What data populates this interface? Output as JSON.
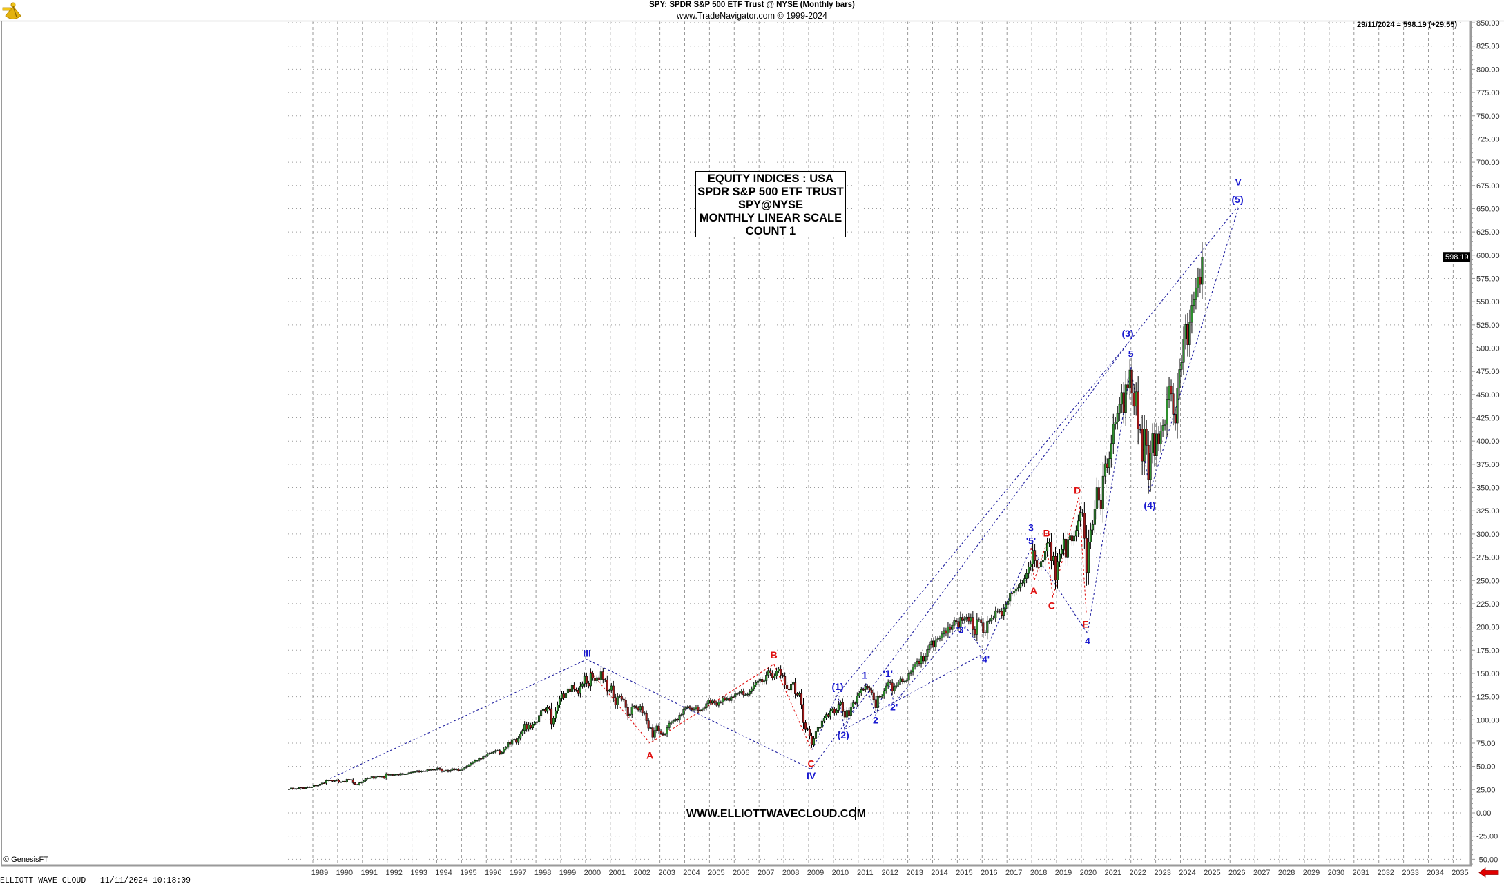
{
  "header": {
    "title": "SPY:  SPDR S&P 500 ETF Trust @ NYSE  (Monthly bars)",
    "subtitle": "www.TradeNavigator.com © 1999-2024",
    "logo_icon": "sextant-icon"
  },
  "readout": "29/11/2024 = 598.19 (+29.55)",
  "last_price_tag": "598.19",
  "info_box": [
    "EQUITY INDICES : USA",
    "SPDR S&P 500 ETF TRUST",
    "SPY@NYSE",
    "MONTHLY LINEAR SCALE",
    "COUNT 1"
  ],
  "website_box": "WWW.ELLIOTTWAVECLOUD.COM",
  "copyright": "© GenesisFT",
  "footer": "ELLIOTT WAVE CLOUD   11/11/2024 10:18:09",
  "nav_arrow_icon": "red-left-arrow-icon",
  "colors": {
    "up": "#2f8f2f",
    "down": "#a31a1a",
    "wave_blue": "#1a1ad0",
    "wave_red": "#e01010",
    "grid": "#9a9a9a",
    "axis": "#9a9a9a"
  },
  "chart_data": {
    "type": "bar",
    "bar_style": "monthly candlesticks",
    "scale": "linear",
    "grid": true,
    "start_month": "1988-01",
    "closes": [
      25.7,
      26.8,
      25.9,
      26.1,
      26.2,
      27.4,
      27.2,
      26.2,
      27.2,
      27.9,
      27.4,
      27.8,
      29.7,
      28.9,
      29.5,
      31.0,
      32.1,
      31.8,
      34.6,
      35.1,
      34.9,
      34.0,
      34.6,
      35.3,
      32.9,
      33.2,
      34.0,
      33.1,
      36.1,
      35.8,
      35.6,
      32.3,
      30.6,
      30.4,
      32.2,
      33.0,
      34.4,
      36.7,
      37.5,
      37.5,
      39.0,
      37.1,
      38.8,
      39.5,
      38.8,
      39.2,
      37.5,
      41.7,
      40.9,
      41.3,
      40.4,
      41.5,
      41.5,
      40.8,
      42.4,
      41.4,
      41.8,
      41.9,
      43.1,
      43.6,
      43.9,
      44.3,
      45.2,
      44.0,
      45.0,
      45.1,
      44.8,
      46.4,
      45.9,
      46.8,
      46.2,
      46.6,
      48.2,
      46.7,
      44.6,
      45.1,
      45.7,
      44.4,
      45.8,
      47.5,
      46.3,
      47.2,
      45.4,
      45.9,
      47.0,
      48.7,
      50.1,
      51.5,
      53.3,
      54.5,
      56.2,
      56.2,
      58.4,
      58.2,
      60.5,
      61.6,
      63.6,
      64.1,
      64.6,
      65.4,
      66.9,
      67.1,
      64.0,
      65.2,
      68.7,
      70.5,
      75.7,
      74.1,
      78.6,
      79.1,
      75.7,
      80.1,
      84.8,
      88.5,
      95.4,
      89.9,
      94.7,
      91.5,
      95.5,
      97.0,
      98.0,
      104.9,
      110.2,
      111.2,
      109.1,
      113.4,
      112.1,
      95.7,
      101.7,
      109.8,
      116.4,
      122.9,
      128.0,
      123.8,
      128.6,
      133.5,
      130.2,
      137.3,
      132.9,
      132.0,
      128.3,
      136.3,
      138.9,
      146.9,
      139.4,
      136.6,
      149.9,
      145.2,
      142.1,
      145.5,
      143.1,
      151.8,
      143.6,
      142.9,
      131.5,
      132.0,
      136.6,
      124.0,
      116.0,
      124.9,
      125.6,
      122.4,
      121.1,
      113.4,
      104.1,
      106.0,
      113.9,
      114.8,
      113.0,
      110.7,
      114.7,
      107.7,
      106.7,
      99.0,
      91.2,
      91.6,
      81.5,
      88.6,
      93.6,
      88.0,
      85.6,
      84.1,
      84.8,
      91.7,
      96.4,
      97.5,
      99.0,
      100.8,
      99.6,
      105.1,
      105.8,
      111.2,
      113.1,
      114.5,
      112.6,
      110.7,
      112.1,
      114.1,
      110.2,
      110.4,
      111.5,
      113.0,
      117.4,
      121.2,
      118.1,
      120.4,
      118.1,
      115.7,
      119.2,
      119.1,
      123.4,
      122.0,
      122.9,
      120.7,
      124.9,
      124.8,
      128.0,
      128.1,
      129.5,
      131.1,
      127.0,
      127.0,
      127.7,
      130.4,
      133.6,
      137.8,
      140.1,
      141.8,
      143.8,
      140.7,
      142.1,
      148.2,
      153.1,
      150.3,
      145.5,
      147.4,
      152.7,
      154.9,
      148.1,
      146.8,
      137.9,
      133.1,
      132.3,
      138.6,
      140.0,
      128.0,
      126.7,
      128.3,
      116.6,
      96.9,
      89.6,
      90.3,
      82.6,
      73.5,
      79.8,
      87.3,
      91.9,
      91.9,
      98.7,
      102.1,
      105.7,
      103.6,
      109.6,
      111.5,
      107.4,
      110.4,
      116.9,
      118.7,
      108.9,
      103.1,
      110.2,
      104.9,
      114.1,
      118.3,
      118.1,
      125.8,
      128.6,
      132.7,
      132.6,
      136.4,
      134.5,
      132.1,
      129.2,
      121.9,
      113.1,
      125.3,
      124.7,
      125.8,
      131.2,
      136.6,
      140.8,
      139.8,
      131.0,
      136.2,
      137.9,
      140.7,
      144.1,
      141.2,
      141.6,
      142.6,
      149.8,
      151.5,
      156.9,
      159.8,
      163.1,
      160.6,
      168.6,
      163.3,
      168.2,
      175.7,
      180.6,
      184.8,
      178.3,
      185.9,
      187.2,
      188.4,
      192.4,
      196.0,
      193.1,
      200.3,
      197.2,
      201.8,
      206.8,
      205.9,
      199.5,
      210.5,
      206.8,
      208.6,
      210.7,
      206.3,
      210.4,
      197.2,
      192.0,
      207.9,
      208.0,
      204.4,
      194.0,
      193.2,
      206.0,
      206.5,
      209.7,
      209.9,
      217.4,
      217.1,
      216.8,
      212.6,
      219.9,
      223.9,
      227.9,
      236.4,
      236.3,
      238.4,
      241.2,
      242.3,
      247.0,
      247.2,
      251.9,
      257.5,
      264.8,
      267.4,
      282.4,
      271.4,
      264.1,
      264.8,
      270.5,
      271.8,
      281.6,
      290.2,
      291.4,
      271.2,
      276.0,
      250.7,
      270.4,
      278.4,
      283.4,
      294.6,
      275.2,
      294.2,
      298.0,
      292.6,
      297.7,
      303.8,
      314.1,
      323.1,
      322.6,
      295.4,
      258.5,
      291.2,
      304.4,
      310.0,
      327.1,
      350.0,
      336.3,
      327.0,
      362.2,
      375.6,
      371.4,
      381.1,
      397.3,
      418.1,
      420.4,
      429.8,
      439.5,
      452.3,
      430.8,
      460.5,
      456.7,
      476.6,
      451.6,
      437.4,
      453.0,
      413.2,
      413.2,
      378.5,
      413.0,
      395.5,
      358.6,
      387.2,
      408.0,
      384.0,
      407.7,
      397.0,
      410.9,
      416.9,
      418.0,
      445.0,
      458.9,
      450.8,
      428.8,
      419.4,
      456.8,
      477.0,
      484.6,
      509.6,
      525.4,
      503.6,
      527.8,
      546.0,
      552.2,
      564.8,
      576.2,
      568.64,
      598.19
    ],
    "y_ticks": [
      -50,
      -25,
      0,
      25,
      50,
      75,
      100,
      125,
      150,
      175,
      200,
      225,
      250,
      275,
      300,
      325,
      350,
      375,
      400,
      425,
      450,
      475,
      500,
      525,
      550,
      575,
      600,
      625,
      650,
      675,
      700,
      725,
      750,
      775,
      800,
      825,
      850
    ],
    "ylim": [
      -56,
      852
    ],
    "x_ticks": [
      "1989",
      "1990",
      "1991",
      "1992",
      "1993",
      "1994",
      "1995",
      "1996",
      "1997",
      "1998",
      "1999",
      "2000",
      "2001",
      "2002",
      "2003",
      "2004",
      "2005",
      "2006",
      "2007",
      "2008",
      "2009",
      "2010",
      "2011",
      "2012",
      "2013",
      "2014",
      "2015",
      "2016",
      "2017",
      "2018",
      "2019",
      "2020",
      "2021",
      "2022",
      "2023",
      "2024",
      "2025",
      "2026",
      "2027",
      "2028",
      "2029",
      "2030",
      "2031",
      "2032",
      "2033",
      "2034",
      "2035"
    ],
    "xlim": [
      "1988-01",
      "2036-01"
    ],
    "annotations": [
      {
        "text": "III",
        "date": 2000.06,
        "price": 172,
        "color": "blue"
      },
      {
        "text": "A",
        "date": 2002.6,
        "price": 62,
        "color": "red"
      },
      {
        "text": "B",
        "date": 2007.6,
        "price": 170,
        "color": "red"
      },
      {
        "text": "C",
        "date": 2009.1,
        "price": 53,
        "color": "red"
      },
      {
        "text": "IV",
        "date": 2009.1,
        "price": 40,
        "color": "blue"
      },
      {
        "text": "(1)",
        "date": 2010.17,
        "price": 136,
        "color": "blue"
      },
      {
        "text": "(2)",
        "date": 2010.4,
        "price": 84,
        "color": "blue"
      },
      {
        "text": "1",
        "date": 2011.26,
        "price": 148,
        "color": "blue"
      },
      {
        "text": "2",
        "date": 2011.7,
        "price": 100,
        "color": "blue"
      },
      {
        "text": "'1'",
        "date": 2012.2,
        "price": 150,
        "color": "blue"
      },
      {
        "text": "'2'",
        "date": 2012.4,
        "price": 114,
        "color": "blue"
      },
      {
        "text": "'3'",
        "date": 2015.15,
        "price": 197,
        "color": "blue"
      },
      {
        "text": "'4'",
        "date": 2016.1,
        "price": 165,
        "color": "blue"
      },
      {
        "text": "3",
        "date": 2017.97,
        "price": 307,
        "color": "blue"
      },
      {
        "text": "'5'",
        "date": 2017.97,
        "price": 293,
        "color": "blue"
      },
      {
        "text": "A",
        "date": 2018.08,
        "price": 239,
        "color": "red"
      },
      {
        "text": "B",
        "date": 2018.6,
        "price": 301,
        "color": "red"
      },
      {
        "text": "C",
        "date": 2018.8,
        "price": 223,
        "color": "red"
      },
      {
        "text": "D",
        "date": 2019.84,
        "price": 347,
        "color": "red"
      },
      {
        "text": "E",
        "date": 2020.17,
        "price": 203,
        "color": "red"
      },
      {
        "text": "4",
        "date": 2020.25,
        "price": 185,
        "color": "blue"
      },
      {
        "text": "(3)",
        "date": 2021.87,
        "price": 516,
        "color": "blue"
      },
      {
        "text": "5",
        "date": 2022.0,
        "price": 494,
        "color": "blue"
      },
      {
        "text": "(4)",
        "date": 2022.76,
        "price": 331,
        "color": "blue"
      },
      {
        "text": "V",
        "date": 2026.33,
        "price": 679,
        "color": "blue"
      },
      {
        "text": "(5)",
        "date": 2026.3,
        "price": 660,
        "color": "blue"
      }
    ],
    "wave_lines": [
      {
        "color": "blue",
        "points": [
          [
            1989.7,
            37
          ],
          [
            2000.05,
            165
          ],
          [
            2009.1,
            47
          ]
        ]
      },
      {
        "color": "blue",
        "points": [
          [
            2009.1,
            47
          ],
          [
            2021.87,
            505
          ]
        ]
      },
      {
        "color": "blue",
        "points": [
          [
            2010.17,
            128
          ],
          [
            2021.87,
            505
          ],
          [
            2026.3,
            652
          ]
        ]
      },
      {
        "color": "blue",
        "points": [
          [
            2009.15,
            68
          ],
          [
            2010.17,
            128
          ],
          [
            2010.45,
            90
          ],
          [
            2011.3,
            140
          ],
          [
            2011.7,
            105
          ],
          [
            2012.2,
            142
          ],
          [
            2012.45,
            118
          ],
          [
            2015.2,
            205
          ],
          [
            2016.1,
            172
          ],
          [
            2017.97,
            285
          ],
          [
            2020.25,
            193
          ],
          [
            2022.0,
            480
          ],
          [
            2022.76,
            345
          ],
          [
            2026.35,
            652
          ]
        ]
      },
      {
        "color": "blue",
        "points": [
          [
            2010.45,
            90
          ],
          [
            2016.1,
            172
          ]
        ]
      },
      {
        "color": "red",
        "points": [
          [
            2000.2,
            152
          ],
          [
            2002.6,
            75
          ],
          [
            2007.6,
            160
          ],
          [
            2009.15,
            66
          ]
        ]
      },
      {
        "color": "red",
        "points": [
          [
            2017.97,
            285
          ],
          [
            2018.1,
            250
          ],
          [
            2018.6,
            290
          ],
          [
            2018.85,
            232
          ],
          [
            2019.9,
            340
          ],
          [
            2020.2,
            215
          ]
        ]
      }
    ]
  }
}
